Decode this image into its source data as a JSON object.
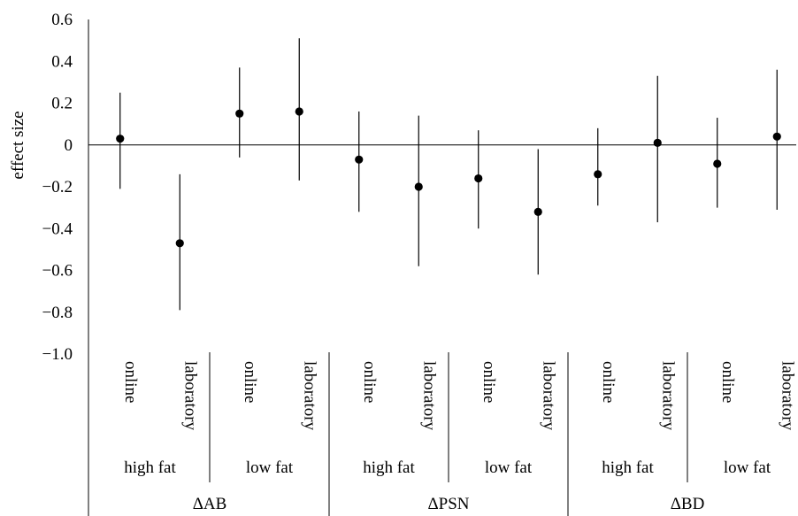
{
  "chart_data": {
    "type": "scatter",
    "ylabel": "effect size",
    "ylim": [
      -1.0,
      0.6
    ],
    "yticks": [
      "0.6",
      "0.4",
      "0.2",
      "0",
      "−0.2",
      "−0.4",
      "−0.6",
      "−0.8",
      "−1.0"
    ],
    "ytick_values": [
      0.6,
      0.4,
      0.2,
      0,
      -0.2,
      -0.4,
      -0.6,
      -0.8,
      -1.0
    ],
    "reference_line": 0,
    "categories": [
      "online",
      "laboratory",
      "online",
      "laboratory",
      "online",
      "laboratory",
      "online",
      "laboratory",
      "online",
      "laboratory",
      "online",
      "laboratory"
    ],
    "subgroups": [
      "high fat",
      "low fat",
      "high fat",
      "low fat",
      "high fat",
      "low fat"
    ],
    "groups": [
      "ΔAB",
      "ΔPSN",
      "ΔBD"
    ],
    "points": [
      {
        "estimate": 0.03,
        "lower": -0.21,
        "upper": 0.25
      },
      {
        "estimate": -0.47,
        "lower": -0.79,
        "upper": -0.14
      },
      {
        "estimate": 0.15,
        "lower": -0.06,
        "upper": 0.37
      },
      {
        "estimate": 0.16,
        "lower": -0.17,
        "upper": 0.51
      },
      {
        "estimate": -0.07,
        "lower": -0.32,
        "upper": 0.16
      },
      {
        "estimate": -0.2,
        "lower": -0.58,
        "upper": 0.14
      },
      {
        "estimate": -0.16,
        "lower": -0.4,
        "upper": 0.07
      },
      {
        "estimate": -0.32,
        "lower": -0.62,
        "upper": -0.02
      },
      {
        "estimate": -0.14,
        "lower": -0.29,
        "upper": 0.08
      },
      {
        "estimate": 0.01,
        "lower": -0.37,
        "upper": 0.33
      },
      {
        "estimate": -0.09,
        "lower": -0.3,
        "upper": 0.13
      },
      {
        "estimate": 0.04,
        "lower": -0.31,
        "upper": 0.36
      }
    ],
    "grid": false
  }
}
